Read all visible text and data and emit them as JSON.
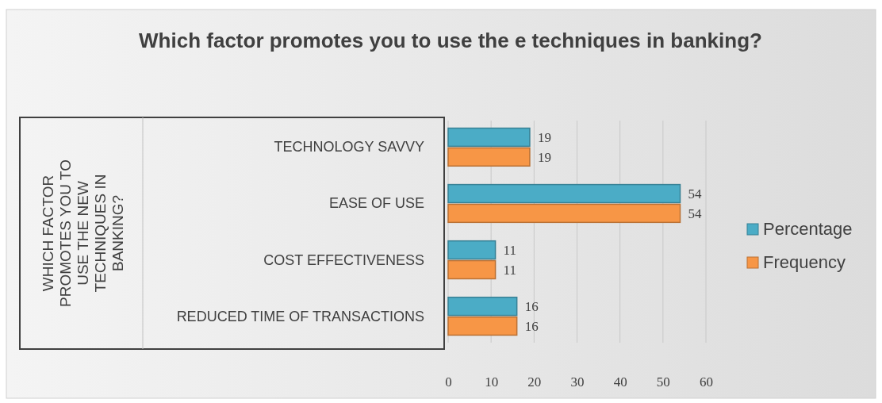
{
  "chart_data": {
    "type": "bar",
    "orientation": "horizontal",
    "title": "Which factor promotes you to use the e techniques in banking?",
    "ylabel": "WHICH FACTOR PROMOTES YOU TO USE THE NEW TECHNIQUES IN BANKING?",
    "categories": [
      "TECHNOLOGY SAVVY",
      "EASE OF USE",
      "COST EFFECTIVENESS",
      "REDUCED TIME  OF TRANSACTIONS"
    ],
    "series": [
      {
        "name": "Percentage",
        "color": "#4bacc6",
        "values": [
          19,
          54,
          11,
          16
        ]
      },
      {
        "name": "Frequency",
        "color": "#f79646",
        "values": [
          19,
          54,
          11,
          16
        ]
      }
    ],
    "xlim": [
      0,
      60
    ],
    "xticks": [
      0,
      10,
      20,
      30,
      40,
      50,
      60
    ],
    "grid": "x",
    "legend": "right",
    "data_labels": true
  }
}
